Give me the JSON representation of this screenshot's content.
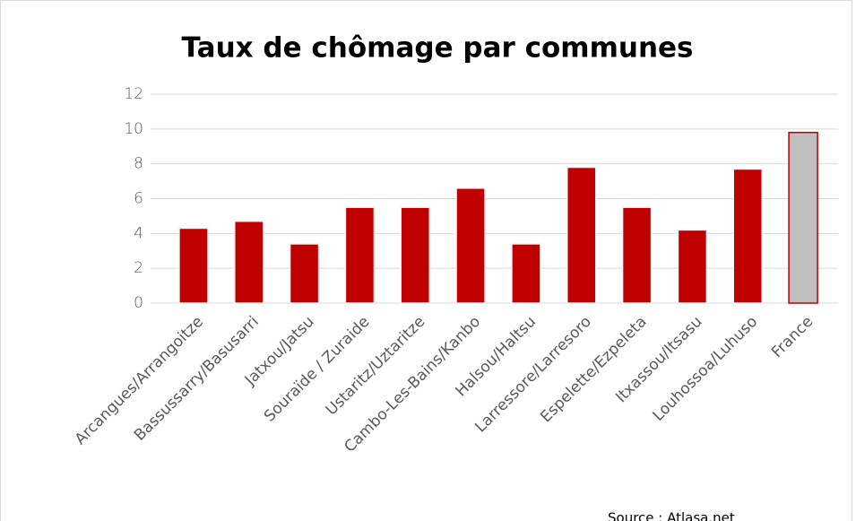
{
  "chart_data": {
    "type": "bar",
    "title": "Taux de chômage par communes",
    "categories": [
      "Arcangues/Arrangoitze",
      "Bassussarry/Basusarri",
      "Jatxou/Jatsu",
      "Souraïde / Zuraide",
      "Ustaritz/Uztaritze",
      "Cambo-Les-Bains/Kanbo",
      "Halsou/Haltsu",
      "Larressore/Larresoro",
      "Espelette/Ezpeleta",
      "Itxassou/Itsasu",
      "Louhossoa/Luhuso",
      "France"
    ],
    "values": [
      4.3,
      4.7,
      3.4,
      5.5,
      5.5,
      6.6,
      3.4,
      7.8,
      5.5,
      4.2,
      7.7,
      9.8
    ],
    "colors": [
      "#c00000",
      "#c00000",
      "#c00000",
      "#c00000",
      "#c00000",
      "#c00000",
      "#c00000",
      "#c00000",
      "#c00000",
      "#c00000",
      "#c00000",
      "#bfbfbf"
    ],
    "ylim": [
      0,
      12
    ],
    "yticks": [
      0,
      2,
      4,
      6,
      8,
      10,
      12
    ],
    "grid": true,
    "source": "Source : Atlasa.net"
  }
}
